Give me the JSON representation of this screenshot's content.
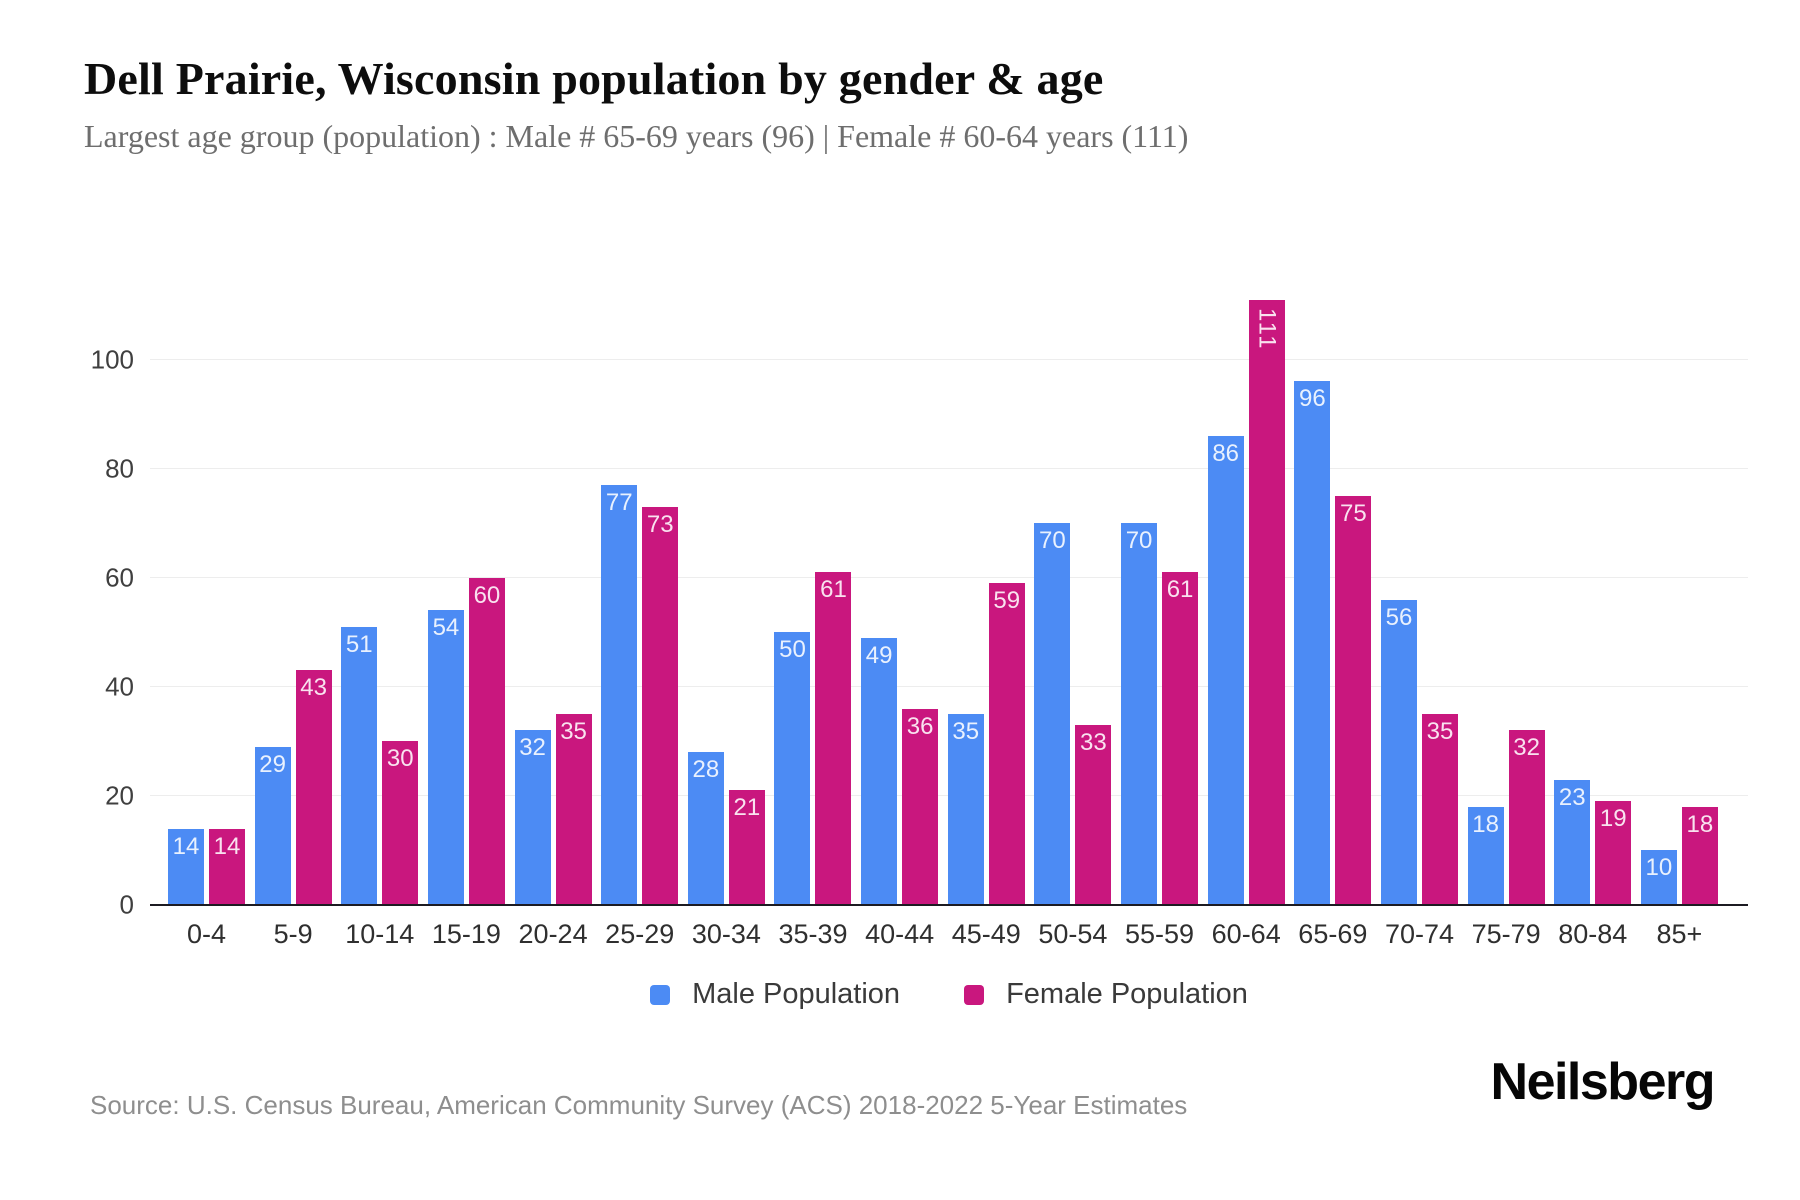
{
  "header": {
    "title": "Dell Prairie, Wisconsin population by gender & age",
    "subtitle": "Largest age group (population) : Male # 65-69 years (96) | Female # 60-64 years (111)"
  },
  "footer": {
    "source": "Source: U.S. Census Bureau, American Community Survey (ACS) 2018-2022 5-Year Estimates",
    "brand": "Neilsberg"
  },
  "colors": {
    "male": "#4C8BF4",
    "female": "#C9177E",
    "gridline": "#ededed",
    "axis_line": "#1c1b22",
    "bar_value_text": "rgba(255,255,255,0.88)"
  },
  "chart_data": {
    "type": "bar",
    "title": "Dell Prairie, Wisconsin population by gender & age",
    "xlabel": "",
    "ylabel": "",
    "categories": [
      "0-4",
      "5-9",
      "10-14",
      "15-19",
      "20-24",
      "25-29",
      "30-34",
      "35-39",
      "40-44",
      "45-49",
      "50-54",
      "55-59",
      "60-64",
      "65-69",
      "70-74",
      "75-79",
      "80-84",
      "85+"
    ],
    "series": [
      {
        "name": "Male Population",
        "color": "#4C8BF4",
        "values": [
          14,
          29,
          51,
          54,
          32,
          77,
          28,
          50,
          49,
          35,
          70,
          70,
          86,
          96,
          56,
          18,
          23,
          10
        ]
      },
      {
        "name": "Female Population",
        "color": "#C9177E",
        "values": [
          14,
          43,
          30,
          60,
          35,
          73,
          21,
          61,
          36,
          59,
          33,
          61,
          111,
          75,
          35,
          32,
          19,
          18
        ]
      }
    ],
    "yticks": [
      0,
      20,
      40,
      60,
      80,
      100
    ],
    "ylim": [
      0,
      121
    ],
    "grid": true,
    "legend_position": "bottom",
    "data_labels": "inside-top"
  }
}
